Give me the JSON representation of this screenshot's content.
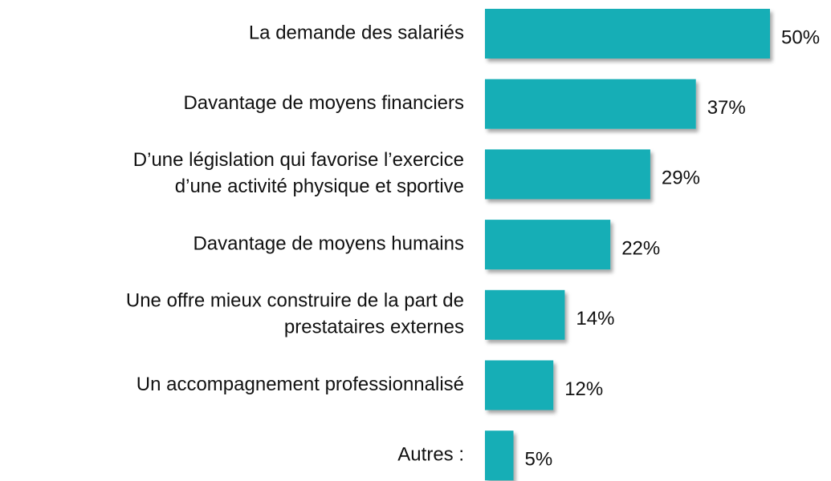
{
  "chart_data": {
    "type": "barh",
    "categories": [
      "La demande des salariés",
      "Davantage de moyens financiers",
      "D’une législation qui favorise l’exercice\nd’une activité physique et sportive",
      "Davantage de moyens humains",
      "Une offre mieux construire de la part de\nprestataires externes",
      "Un accompagnement professionnalisé",
      "Autres :"
    ],
    "values": [
      50,
      37,
      29,
      22,
      14,
      12,
      5
    ],
    "value_labels": [
      "50%",
      "37%",
      "29%",
      "22%",
      "14%",
      "12%",
      "5%"
    ],
    "color": "#14aeb6"
  }
}
